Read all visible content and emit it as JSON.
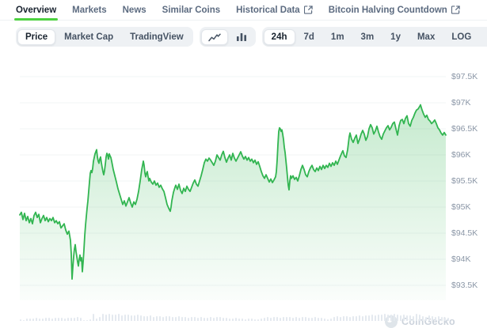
{
  "tabs": [
    {
      "label": "Overview",
      "active": true,
      "external": false
    },
    {
      "label": "Markets",
      "active": false,
      "external": false
    },
    {
      "label": "News",
      "active": false,
      "external": false
    },
    {
      "label": "Similar Coins",
      "active": false,
      "external": false
    },
    {
      "label": "Historical Data",
      "active": false,
      "external": true
    },
    {
      "label": "Bitcoin Halving Countdown",
      "active": false,
      "external": true
    }
  ],
  "toolbar": {
    "metric_options": [
      {
        "label": "Price",
        "active": true
      },
      {
        "label": "Market Cap",
        "active": false
      },
      {
        "label": "TradingView",
        "active": false
      }
    ],
    "chart_type_options": [
      {
        "icon": "line-chart-icon",
        "active": true
      },
      {
        "icon": "bar-chart-icon",
        "active": false
      }
    ],
    "range_options": [
      {
        "label": "24h",
        "active": true
      },
      {
        "label": "7d",
        "active": false
      },
      {
        "label": "1m",
        "active": false
      },
      {
        "label": "3m",
        "active": false
      },
      {
        "label": "1y",
        "active": false
      },
      {
        "label": "Max",
        "active": false
      },
      {
        "label": "LOG",
        "active": false
      }
    ],
    "action_icons": [
      "calendar-icon",
      "download-icon",
      "expand-icon"
    ]
  },
  "watermark": {
    "label": "CoinGecko"
  },
  "colors": {
    "accent_green": "#4dd140",
    "line_green": "#32b551",
    "tab_active_text": "#18222e",
    "tab_inactive_text": "#5c6b80",
    "axis_label": "#8a96a6",
    "volume_bar": "#e4e9ef"
  },
  "chart_data": {
    "type": "area",
    "title": "Bitcoin price, 24h window",
    "x_axis_note": "x = pixel position across the 24h window (left 25 .. right 563), time increasing rightward",
    "unit": "USD (thousands)",
    "grid": "horizontal",
    "legend": "none",
    "ylim": [
      93.2,
      97.7
    ],
    "y_ticks": [
      {
        "label": "$97.5K",
        "value": 97.5
      },
      {
        "label": "$97K",
        "value": 97.0
      },
      {
        "label": "$96.5K",
        "value": 96.5
      },
      {
        "label": "$96K",
        "value": 96.0
      },
      {
        "label": "$95.5K",
        "value": 95.5
      },
      {
        "label": "$95K",
        "value": 95.0
      },
      {
        "label": "$94.5K",
        "value": 94.5
      },
      {
        "label": "$94K",
        "value": 94.0
      },
      {
        "label": "$93.5K",
        "value": 93.5
      }
    ],
    "points": [
      [
        25,
        94.85
      ],
      [
        27,
        94.9
      ],
      [
        29,
        94.76
      ],
      [
        31,
        94.88
      ],
      [
        33,
        94.74
      ],
      [
        35,
        94.82
      ],
      [
        37,
        94.7
      ],
      [
        39,
        94.78
      ],
      [
        41,
        94.68
      ],
      [
        43,
        94.84
      ],
      [
        45,
        94.9
      ],
      [
        47,
        94.8
      ],
      [
        49,
        94.86
      ],
      [
        51,
        94.7
      ],
      [
        53,
        94.78
      ],
      [
        55,
        94.84
      ],
      [
        57,
        94.74
      ],
      [
        59,
        94.8
      ],
      [
        61,
        94.72
      ],
      [
        63,
        94.78
      ],
      [
        65,
        94.74
      ],
      [
        67,
        94.8
      ],
      [
        69,
        94.7
      ],
      [
        71,
        94.74
      ],
      [
        73,
        94.68
      ],
      [
        75,
        94.72
      ],
      [
        77,
        94.6
      ],
      [
        79,
        94.64
      ],
      [
        81,
        94.68
      ],
      [
        83,
        94.56
      ],
      [
        85,
        94.48
      ],
      [
        87,
        94.54
      ],
      [
        89,
        94.36
      ],
      [
        90,
        94.1
      ],
      [
        91,
        93.62
      ],
      [
        92,
        93.85
      ],
      [
        93,
        94.05
      ],
      [
        94,
        94.2
      ],
      [
        95,
        94.28
      ],
      [
        96,
        94.15
      ],
      [
        97,
        94.05
      ],
      [
        98,
        93.95
      ],
      [
        99,
        93.87
      ],
      [
        100,
        94.0
      ],
      [
        101,
        94.08
      ],
      [
        102,
        93.97
      ],
      [
        103,
        94.03
      ],
      [
        104,
        93.76
      ],
      [
        105,
        93.95
      ],
      [
        106,
        94.18
      ],
      [
        107,
        94.45
      ],
      [
        108,
        94.65
      ],
      [
        109,
        94.82
      ],
      [
        110,
        94.98
      ],
      [
        111,
        95.12
      ],
      [
        112,
        95.3
      ],
      [
        113,
        95.48
      ],
      [
        114,
        95.65
      ],
      [
        115,
        95.7
      ],
      [
        116,
        95.66
      ],
      [
        117,
        95.74
      ],
      [
        118,
        95.88
      ],
      [
        119,
        95.95
      ],
      [
        120,
        96.02
      ],
      [
        121,
        96.06
      ],
      [
        122,
        96.1
      ],
      [
        123,
        95.96
      ],
      [
        124,
        95.88
      ],
      [
        125,
        95.84
      ],
      [
        126,
        95.92
      ],
      [
        127,
        95.96
      ],
      [
        128,
        95.85
      ],
      [
        129,
        95.76
      ],
      [
        130,
        95.68
      ],
      [
        131,
        95.62
      ],
      [
        132,
        95.7
      ],
      [
        133,
        95.82
      ],
      [
        134,
        95.96
      ],
      [
        135,
        96.03
      ],
      [
        136,
        96.0
      ],
      [
        137,
        95.92
      ],
      [
        138,
        96.02
      ],
      [
        139,
        95.98
      ],
      [
        140,
        95.95
      ],
      [
        141,
        95.88
      ],
      [
        142,
        95.8
      ],
      [
        143,
        95.72
      ],
      [
        145,
        95.6
      ],
      [
        147,
        95.48
      ],
      [
        149,
        95.35
      ],
      [
        151,
        95.25
      ],
      [
        153,
        95.15
      ],
      [
        155,
        95.05
      ],
      [
        157,
        95.12
      ],
      [
        159,
        95.02
      ],
      [
        161,
        95.1
      ],
      [
        163,
        95.18
      ],
      [
        165,
        95.08
      ],
      [
        167,
        95.0
      ],
      [
        169,
        95.1
      ],
      [
        171,
        95.05
      ],
      [
        173,
        95.15
      ],
      [
        175,
        95.3
      ],
      [
        177,
        95.5
      ],
      [
        179,
        95.72
      ],
      [
        181,
        95.88
      ],
      [
        182,
        95.8
      ],
      [
        183,
        95.65
      ],
      [
        184,
        95.58
      ],
      [
        185,
        95.65
      ],
      [
        186,
        95.68
      ],
      [
        187,
        95.58
      ],
      [
        188,
        95.5
      ],
      [
        189,
        95.55
      ],
      [
        191,
        95.48
      ],
      [
        193,
        95.44
      ],
      [
        195,
        95.5
      ],
      [
        197,
        95.42
      ],
      [
        199,
        95.46
      ],
      [
        201,
        95.38
      ],
      [
        203,
        95.42
      ],
      [
        205,
        95.35
      ],
      [
        207,
        95.3
      ],
      [
        209,
        95.18
      ],
      [
        211,
        95.05
      ],
      [
        213,
        94.98
      ],
      [
        215,
        94.92
      ],
      [
        216,
        95.0
      ],
      [
        217,
        95.12
      ],
      [
        219,
        95.28
      ],
      [
        221,
        95.38
      ],
      [
        222,
        95.42
      ],
      [
        224,
        95.34
      ],
      [
        226,
        95.44
      ],
      [
        228,
        95.32
      ],
      [
        230,
        95.26
      ],
      [
        232,
        95.36
      ],
      [
        234,
        95.3
      ],
      [
        236,
        95.4
      ],
      [
        238,
        95.34
      ],
      [
        240,
        95.3
      ],
      [
        242,
        95.38
      ],
      [
        244,
        95.46
      ],
      [
        246,
        95.52
      ],
      [
        248,
        95.44
      ],
      [
        250,
        95.4
      ],
      [
        252,
        95.5
      ],
      [
        254,
        95.6
      ],
      [
        256,
        95.72
      ],
      [
        258,
        95.85
      ],
      [
        260,
        95.92
      ],
      [
        262,
        95.88
      ],
      [
        264,
        95.94
      ],
      [
        266,
        95.9
      ],
      [
        268,
        95.85
      ],
      [
        270,
        95.8
      ],
      [
        272,
        95.88
      ],
      [
        274,
        96.0
      ],
      [
        276,
        95.95
      ],
      [
        278,
        95.9
      ],
      [
        280,
        96.0
      ],
      [
        282,
        96.07
      ],
      [
        284,
        95.95
      ],
      [
        286,
        95.86
      ],
      [
        288,
        95.94
      ],
      [
        290,
        96.0
      ],
      [
        292,
        95.9
      ],
      [
        294,
        96.03
      ],
      [
        296,
        95.94
      ],
      [
        298,
        95.88
      ],
      [
        300,
        95.94
      ],
      [
        302,
        96.0
      ],
      [
        304,
        96.06
      ],
      [
        306,
        95.98
      ],
      [
        308,
        95.92
      ],
      [
        310,
        95.97
      ],
      [
        312,
        95.9
      ],
      [
        314,
        95.95
      ],
      [
        316,
        95.88
      ],
      [
        318,
        95.92
      ],
      [
        320,
        95.85
      ],
      [
        322,
        95.9
      ],
      [
        324,
        95.82
      ],
      [
        326,
        95.87
      ],
      [
        328,
        95.78
      ],
      [
        330,
        95.68
      ],
      [
        332,
        95.6
      ],
      [
        334,
        95.55
      ],
      [
        336,
        95.62
      ],
      [
        338,
        95.55
      ],
      [
        340,
        95.48
      ],
      [
        342,
        95.54
      ],
      [
        344,
        95.47
      ],
      [
        346,
        95.52
      ],
      [
        348,
        95.58
      ],
      [
        349,
        95.68
      ],
      [
        350,
        95.9
      ],
      [
        351,
        96.2
      ],
      [
        352,
        96.45
      ],
      [
        353,
        96.52
      ],
      [
        354,
        96.5
      ],
      [
        355,
        96.45
      ],
      [
        356,
        96.48
      ],
      [
        357,
        96.4
      ],
      [
        358,
        96.3
      ],
      [
        359,
        96.15
      ],
      [
        360,
        96.05
      ],
      [
        361,
        95.9
      ],
      [
        362,
        95.75
      ],
      [
        363,
        95.58
      ],
      [
        364,
        95.42
      ],
      [
        365,
        95.33
      ],
      [
        366,
        95.5
      ],
      [
        367,
        95.6
      ],
      [
        368,
        95.55
      ],
      [
        370,
        95.6
      ],
      [
        372,
        95.53
      ],
      [
        374,
        95.57
      ],
      [
        376,
        95.5
      ],
      [
        378,
        95.6
      ],
      [
        380,
        95.72
      ],
      [
        382,
        95.8
      ],
      [
        384,
        95.72
      ],
      [
        386,
        95.62
      ],
      [
        388,
        95.58
      ],
      [
        390,
        95.68
      ],
      [
        392,
        95.75
      ],
      [
        394,
        95.8
      ],
      [
        396,
        95.72
      ],
      [
        398,
        95.68
      ],
      [
        400,
        95.75
      ],
      [
        402,
        95.7
      ],
      [
        404,
        95.78
      ],
      [
        406,
        95.72
      ],
      [
        408,
        95.8
      ],
      [
        410,
        95.74
      ],
      [
        412,
        95.8
      ],
      [
        414,
        95.76
      ],
      [
        416,
        95.84
      ],
      [
        418,
        95.78
      ],
      [
        420,
        95.85
      ],
      [
        422,
        95.8
      ],
      [
        424,
        95.88
      ],
      [
        426,
        95.82
      ],
      [
        428,
        95.9
      ],
      [
        430,
        95.98
      ],
      [
        432,
        96.05
      ],
      [
        433,
        96.08
      ],
      [
        435,
        95.98
      ],
      [
        437,
        95.95
      ],
      [
        439,
        96.1
      ],
      [
        441,
        96.35
      ],
      [
        442,
        96.42
      ],
      [
        444,
        96.3
      ],
      [
        446,
        96.24
      ],
      [
        448,
        96.32
      ],
      [
        450,
        96.38
      ],
      [
        452,
        96.22
      ],
      [
        454,
        96.3
      ],
      [
        456,
        96.4
      ],
      [
        458,
        96.47
      ],
      [
        460,
        96.4
      ],
      [
        462,
        96.28
      ],
      [
        464,
        96.35
      ],
      [
        466,
        96.5
      ],
      [
        468,
        96.58
      ],
      [
        470,
        96.52
      ],
      [
        472,
        96.4
      ],
      [
        474,
        96.46
      ],
      [
        476,
        96.55
      ],
      [
        478,
        96.44
      ],
      [
        480,
        96.35
      ],
      [
        482,
        96.3
      ],
      [
        484,
        96.4
      ],
      [
        486,
        96.46
      ],
      [
        488,
        96.52
      ],
      [
        490,
        96.56
      ],
      [
        492,
        96.48
      ],
      [
        494,
        96.53
      ],
      [
        496,
        96.6
      ],
      [
        498,
        96.63
      ],
      [
        500,
        96.5
      ],
      [
        502,
        96.38
      ],
      [
        504,
        96.56
      ],
      [
        506,
        96.66
      ],
      [
        508,
        96.68
      ],
      [
        510,
        96.6
      ],
      [
        512,
        96.7
      ],
      [
        514,
        96.75
      ],
      [
        516,
        96.6
      ],
      [
        518,
        96.55
      ],
      [
        520,
        96.66
      ],
      [
        522,
        96.72
      ],
      [
        524,
        96.8
      ],
      [
        526,
        96.86
      ],
      [
        528,
        96.88
      ],
      [
        530,
        96.93
      ],
      [
        531,
        96.96
      ],
      [
        533,
        96.86
      ],
      [
        535,
        96.78
      ],
      [
        537,
        96.72
      ],
      [
        539,
        96.76
      ],
      [
        541,
        96.68
      ],
      [
        543,
        96.65
      ],
      [
        545,
        96.6
      ],
      [
        547,
        96.63
      ],
      [
        549,
        96.67
      ],
      [
        551,
        96.6
      ],
      [
        553,
        96.52
      ],
      [
        555,
        96.48
      ],
      [
        557,
        96.42
      ],
      [
        559,
        96.38
      ],
      [
        561,
        96.43
      ],
      [
        563,
        96.38
      ]
    ],
    "volume_bars": [
      0.25,
      0.15,
      0.3,
      0.35,
      0.3,
      0.4,
      0.35,
      0.3,
      0.45,
      0.4,
      0.35,
      0.4,
      0.45,
      0.4,
      0.35,
      0.45,
      0.4,
      0.45,
      0.5,
      0.45,
      0.15,
      0.1,
      0.2,
      0.9,
      0.3,
      0.5,
      0.95,
      0.85,
      0.9,
      0.8,
      0.85,
      0.9,
      0.75,
      0.8,
      0.85,
      0.7,
      0.75,
      0.8,
      0.7,
      0.65,
      0.6,
      0.7,
      0.55,
      0.65,
      0.6,
      0.55,
      0.6,
      0.65,
      0.55,
      0.5,
      0.6,
      0.55,
      0.5,
      0.45,
      0.55,
      0.5,
      0.45,
      0.5,
      0.45,
      0.4,
      0.5,
      0.45,
      0.55,
      0.5,
      0.45,
      0.4,
      0.35,
      0.3,
      0.4,
      0.35,
      0.3,
      0.25,
      0.35,
      0.3,
      0.25,
      0.2,
      0.3,
      0.45,
      0.5,
      0.45,
      0.55,
      0.5,
      0.45,
      0.5,
      0.55,
      0.5,
      0.45,
      0.5,
      0.45,
      0.55,
      0.5,
      0.45,
      0.4,
      0.5,
      0.45,
      0.4,
      0.3,
      0.25,
      0.35,
      0.55,
      0.6,
      0.55,
      0.65,
      0.6,
      0.55,
      0.65,
      0.6,
      0.7,
      0.65,
      0.75,
      0.7,
      0.8,
      0.75,
      0.85,
      0.8,
      0.9,
      0.85,
      0.8,
      0.9,
      0.85,
      0.75,
      0.8,
      0.7,
      0.75,
      0.65,
      0.9,
      0.85,
      0.6,
      0.55,
      0.7,
      0.65,
      0.5,
      0.6,
      0.55,
      0.45,
      0.4
    ]
  }
}
